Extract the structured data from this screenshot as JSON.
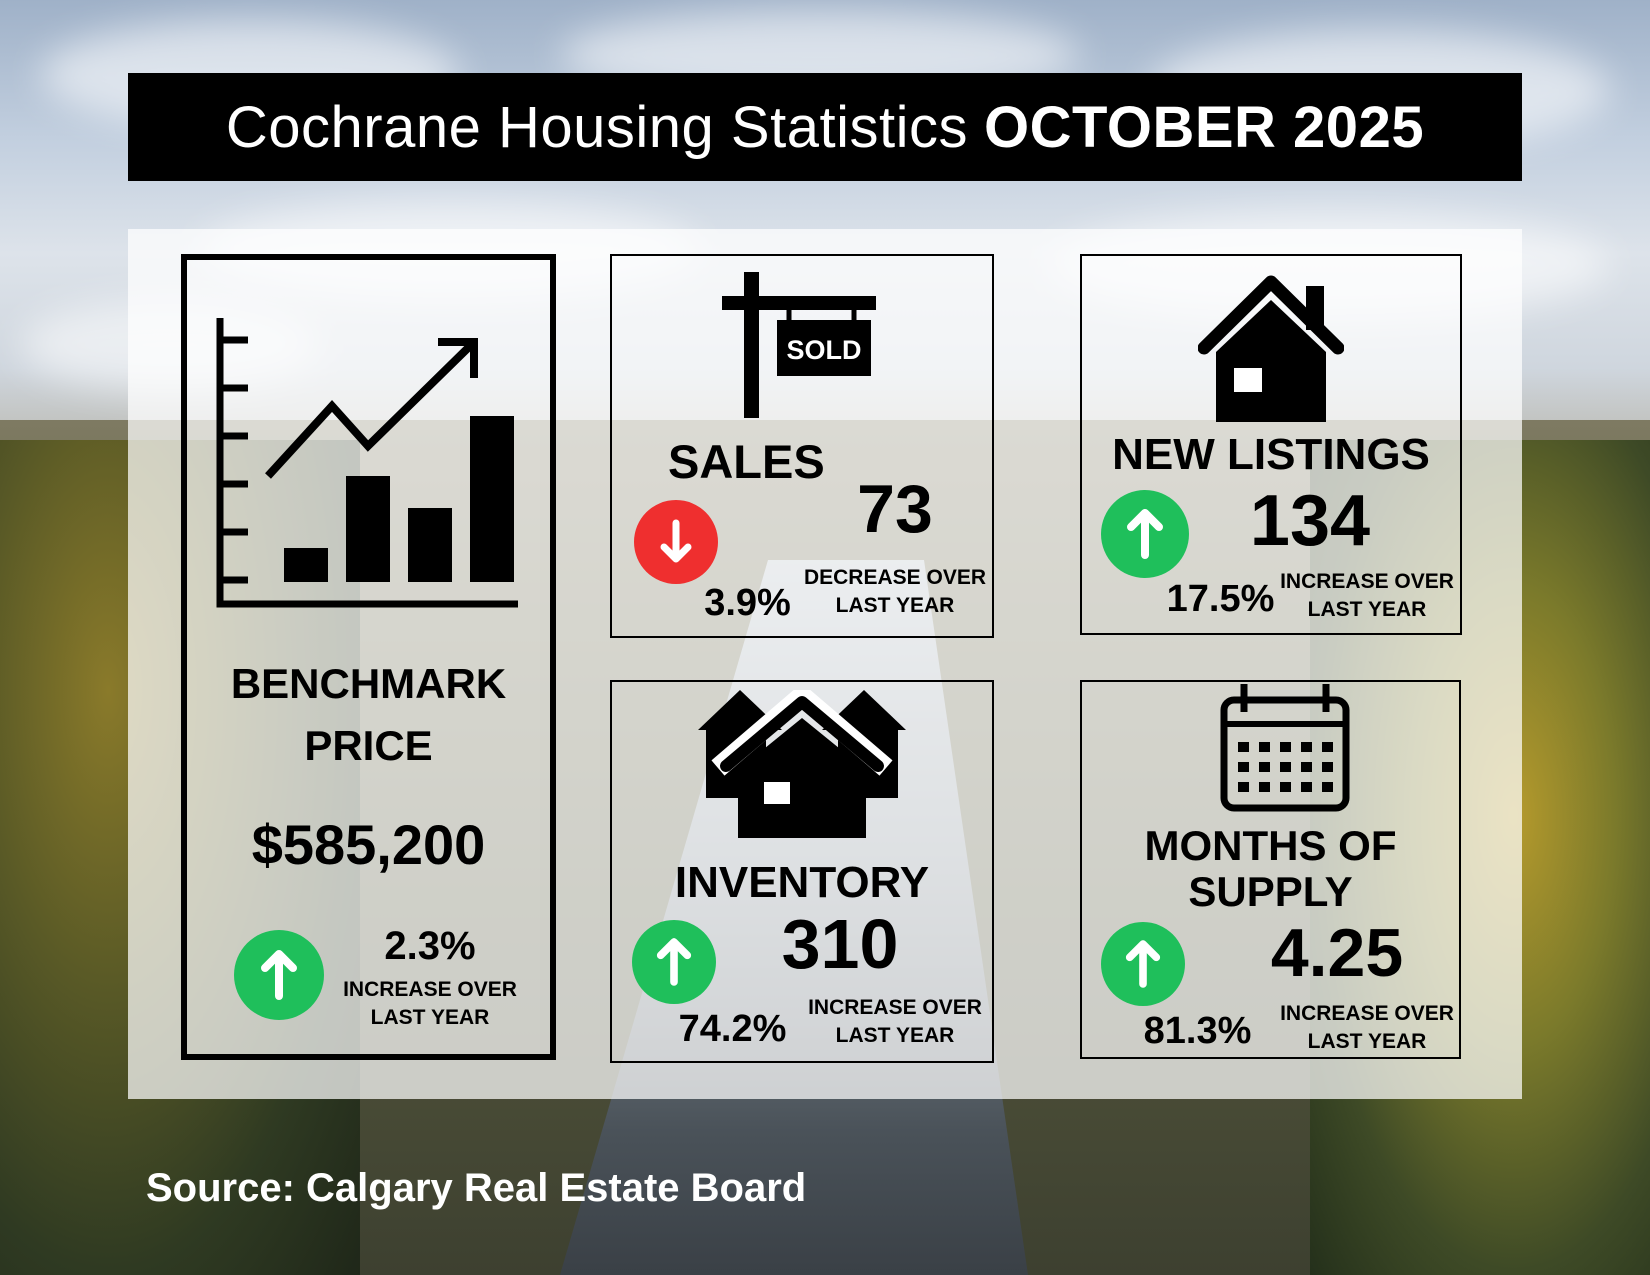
{
  "header": {
    "title_normal": "Cochrane Housing Statistics",
    "title_bold": "OCTOBER 2025"
  },
  "colors": {
    "increase": "#1fbf5b",
    "decrease": "#ef2f2f",
    "title_bg": "#000000"
  },
  "benchmark": {
    "label_line1": "BENCHMARK",
    "label_line2": "PRICE",
    "value": "$585,200",
    "change": "2.3%",
    "direction": "up",
    "note_line1": "INCREASE OVER",
    "note_line2": "LAST YEAR",
    "icon": "growth-chart-icon"
  },
  "sales": {
    "label": "SALES",
    "value": "73",
    "change": "3.9%",
    "direction": "down",
    "note_line1": "DECREASE OVER",
    "note_line2": "LAST YEAR",
    "icon": "sold-sign-icon",
    "sign_text": "SOLD"
  },
  "new_listings": {
    "label": "NEW LISTINGS",
    "value": "134",
    "change": "17.5%",
    "direction": "up",
    "note_line1": "INCREASE OVER",
    "note_line2": "LAST YEAR",
    "icon": "house-icon"
  },
  "inventory": {
    "label": "INVENTORY",
    "value": "310",
    "change": "74.2%",
    "direction": "up",
    "note_line1": "INCREASE OVER",
    "note_line2": "LAST YEAR",
    "icon": "houses-icon"
  },
  "months_supply": {
    "label_line1": "MONTHS OF",
    "label_line2": "SUPPLY",
    "value": "4.25",
    "change": "81.3%",
    "direction": "up",
    "note_line1": "INCREASE OVER",
    "note_line2": "LAST YEAR",
    "icon": "calendar-icon"
  },
  "footer": {
    "source": "Source: Calgary Real Estate Board"
  }
}
